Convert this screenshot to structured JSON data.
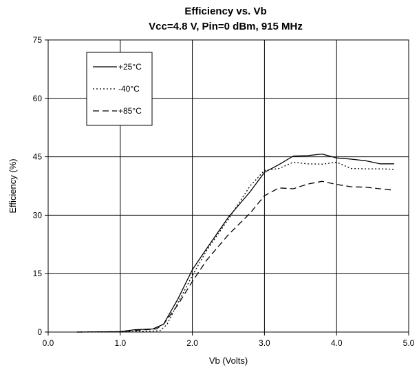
{
  "chart_data": {
    "type": "line",
    "title": "Efficiency vs. Vb",
    "subtitle": "Vcc=4.8 V, Pin=0 dBm, 915 MHz",
    "xlabel": "Vb (Volts)",
    "ylabel": "Efficiency (%)",
    "xlim": [
      0,
      5
    ],
    "ylim": [
      0,
      75
    ],
    "xticks": [
      "0.0",
      "1.0",
      "2.0",
      "3.0",
      "4.0",
      "5.0"
    ],
    "yticks": [
      "0",
      "15",
      "30",
      "45",
      "60",
      "75"
    ],
    "grid": true,
    "legend_position": "top-left",
    "series": [
      {
        "name": "+25°C",
        "dash": "solid",
        "color": "#000000",
        "x": [
          0.4,
          1.0,
          1.2,
          1.45,
          1.6,
          1.8,
          2.0,
          2.2,
          2.5,
          2.8,
          3.0,
          3.2,
          3.4,
          3.6,
          3.8,
          4.0,
          4.2,
          4.4,
          4.6,
          4.8
        ],
        "y": [
          0,
          0.1,
          0.6,
          0.8,
          2.0,
          8.5,
          16.0,
          21.5,
          29.5,
          36.0,
          41.0,
          43.0,
          45.2,
          45.3,
          45.7,
          44.7,
          44.4,
          44.0,
          43.2,
          43.2
        ]
      },
      {
        "name": "-40°C",
        "dash": "dotted",
        "color": "#000000",
        "x": [
          0.4,
          1.0,
          1.3,
          1.55,
          1.65,
          1.8,
          2.0,
          2.2,
          2.5,
          2.8,
          3.0,
          3.2,
          3.4,
          3.6,
          3.8,
          4.0,
          4.2,
          4.4,
          4.6,
          4.8
        ],
        "y": [
          0,
          0,
          0.2,
          0.3,
          2.0,
          7.5,
          14.5,
          21.0,
          29.0,
          37.5,
          41.5,
          42.0,
          43.6,
          43.2,
          43.1,
          43.6,
          42.0,
          41.9,
          41.9,
          41.8
        ]
      },
      {
        "name": "+85°C",
        "dash": "dashed",
        "color": "#000000",
        "x": [
          0.4,
          1.0,
          1.2,
          1.5,
          1.6,
          1.8,
          2.0,
          2.2,
          2.5,
          2.8,
          3.0,
          3.2,
          3.4,
          3.6,
          3.8,
          4.0,
          4.2,
          4.4,
          4.6,
          4.8
        ],
        "y": [
          0,
          0.1,
          0.4,
          0.8,
          2.0,
          7.0,
          13.0,
          18.5,
          25.0,
          30.5,
          35.0,
          37.0,
          36.8,
          38.0,
          38.7,
          37.9,
          37.3,
          37.2,
          36.8,
          36.4
        ]
      }
    ]
  }
}
